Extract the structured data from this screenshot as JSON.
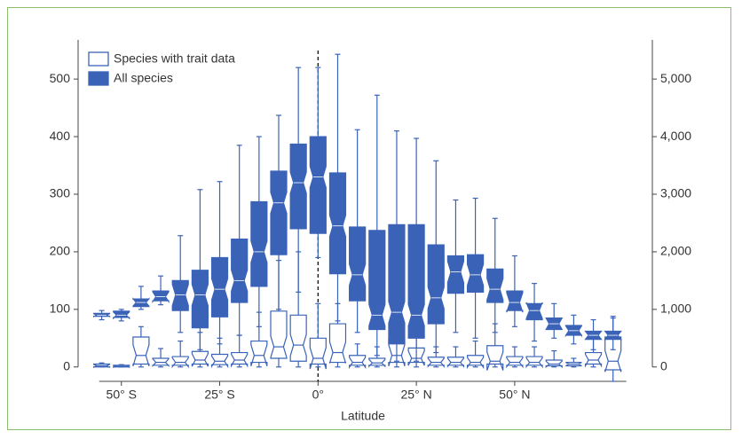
{
  "chart_data": {
    "type": "boxplot",
    "xlabel": "Latitude",
    "x": [
      -55,
      -50,
      -45,
      -40,
      -35,
      -30,
      -25,
      -20,
      -15,
      -10,
      -5,
      0,
      5,
      10,
      15,
      20,
      25,
      30,
      35,
      40,
      45,
      50,
      55,
      60,
      65,
      70,
      75
    ],
    "xlim": [
      -61,
      85
    ],
    "xticks": [
      {
        "value": -50,
        "label": "50° S"
      },
      {
        "value": -25,
        "label": "25° S"
      },
      {
        "value": 0,
        "label": "0°"
      },
      {
        "value": 25,
        "label": "25° N"
      },
      {
        "value": 50,
        "label": "50° N"
      }
    ],
    "vline": 0,
    "ylim": [
      -25,
      568
    ],
    "yticks": [
      0,
      100,
      200,
      300,
      400,
      500
    ],
    "y2lim": [
      -250,
      5680
    ],
    "y2ticks": [
      0,
      {
        "value": 1000,
        "label": "1,000"
      },
      {
        "value": 2000,
        "label": "2,000"
      },
      {
        "value": 3000,
        "label": "3,000"
      },
      {
        "value": 4000,
        "label": "4,000"
      },
      {
        "value": 5000,
        "label": "5,000"
      }
    ],
    "legend": "upper left",
    "series": [
      {
        "name": "Species with trait data",
        "color": "#3a63b8",
        "filled": false,
        "axis": "y",
        "whislo": [
          0,
          0,
          0,
          0,
          0,
          0,
          0,
          0,
          0,
          0,
          0,
          0,
          0,
          0,
          0,
          0,
          0,
          0,
          0,
          0,
          0,
          0,
          0,
          0,
          0,
          0,
          -25
        ],
        "q1": [
          0,
          0,
          5,
          3,
          3,
          5,
          4,
          5,
          8,
          15,
          10,
          5,
          8,
          3,
          3,
          8,
          8,
          3,
          3,
          3,
          5,
          3,
          3,
          2,
          2,
          5,
          -5
        ],
        "med": [
          2,
          1,
          20,
          8,
          8,
          12,
          10,
          12,
          20,
          35,
          38,
          15,
          25,
          8,
          7,
          20,
          15,
          8,
          8,
          8,
          10,
          8,
          8,
          5,
          5,
          12,
          10
        ],
        "q3": [
          5,
          3,
          52,
          15,
          18,
          27,
          22,
          25,
          45,
          97,
          90,
          50,
          75,
          20,
          15,
          48,
          33,
          17,
          17,
          20,
          37,
          18,
          18,
          12,
          8,
          25,
          52
        ],
        "whishi": [
          7,
          4,
          70,
          32,
          45,
          60,
          50,
          55,
          95,
          185,
          200,
          110,
          110,
          40,
          35,
          90,
          60,
          35,
          35,
          45,
          75,
          35,
          35,
          28,
          15,
          50,
          85
        ]
      },
      {
        "name": "All species",
        "color": "#3a63b8",
        "filled": true,
        "axis": "y2",
        "whislo": [
          820,
          800,
          1000,
          1080,
          600,
          300,
          400,
          550,
          700,
          1000,
          1300,
          1900,
          800,
          600,
          200,
          100,
          100,
          250,
          600,
          500,
          600,
          700,
          450,
          500,
          400,
          300,
          300
        ],
        "q1": [
          880,
          860,
          1050,
          1150,
          980,
          680,
          870,
          1120,
          1400,
          1950,
          2400,
          2320,
          1620,
          1150,
          650,
          400,
          500,
          750,
          1280,
          1300,
          1120,
          980,
          820,
          650,
          550,
          480,
          480
        ],
        "med": [
          900,
          900,
          1120,
          1220,
          1250,
          1250,
          1350,
          1500,
          2000,
          2850,
          3200,
          3300,
          2450,
          1600,
          900,
          950,
          900,
          1200,
          1650,
          1600,
          1350,
          1120,
          980,
          750,
          630,
          550,
          550
        ],
        "q3": [
          930,
          970,
          1180,
          1320,
          1500,
          1680,
          1900,
          2220,
          2870,
          3400,
          3870,
          4000,
          3370,
          2430,
          2370,
          2470,
          2470,
          2120,
          1930,
          1950,
          1700,
          1320,
          1100,
          850,
          720,
          620,
          620
        ],
        "whishi": [
          980,
          1000,
          1400,
          1580,
          2280,
          3080,
          3220,
          3850,
          4000,
          4370,
          5200,
          5200,
          5430,
          4120,
          4720,
          4100,
          3970,
          3580,
          2900,
          2930,
          2580,
          1930,
          1450,
          1100,
          900,
          820,
          880
        ]
      }
    ]
  }
}
